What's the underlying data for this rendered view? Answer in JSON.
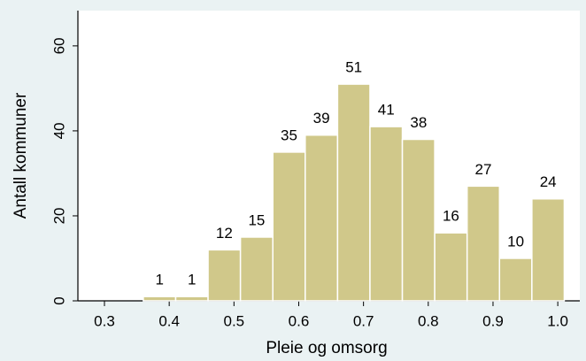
{
  "chart_data": {
    "type": "histogram",
    "xlabel": "Pleie og omsorg",
    "ylabel": "Antall kommuner",
    "bins": [
      0.36,
      0.41,
      0.46,
      0.51,
      0.56,
      0.61,
      0.66,
      0.71,
      0.76,
      0.81,
      0.86,
      0.91,
      0.96,
      1.01
    ],
    "values": [
      1,
      1,
      12,
      15,
      35,
      39,
      51,
      41,
      38,
      16,
      27,
      10,
      24
    ],
    "color": "#d0c88a",
    "xlim": [
      0.259,
      1.034
    ],
    "xticks": [
      0.3,
      0.4,
      0.5,
      0.6,
      0.7,
      0.8,
      0.9,
      {
        "value": 1.0,
        "label": "1.0"
      }
    ],
    "ylim": [
      0,
      68.3
    ],
    "yticks": [
      0,
      20,
      40,
      60
    ]
  }
}
